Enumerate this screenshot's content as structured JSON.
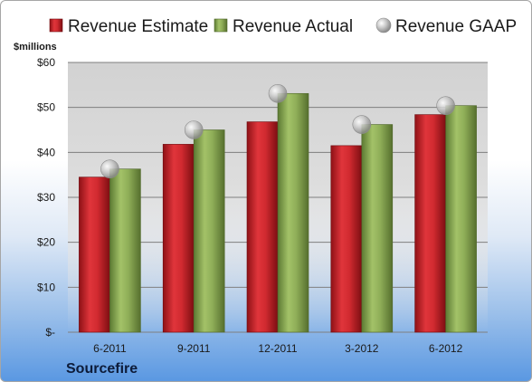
{
  "chart_data": {
    "type": "bar",
    "unit_label": "$millions",
    "company": "Sourcefire",
    "categories": [
      "6-2011",
      "9-2011",
      "12-2011",
      "3-2012",
      "6-2012"
    ],
    "series": [
      {
        "name": "Revenue Estimate",
        "kind": "bar",
        "color": "#d12a30",
        "values": [
          34.5,
          41.8,
          46.8,
          41.5,
          48.4
        ]
      },
      {
        "name": "Revenue Actual",
        "kind": "bar",
        "color": "#8fae58",
        "values": [
          36.3,
          45.0,
          53.1,
          46.2,
          50.4
        ]
      },
      {
        "name": "Revenue GAAP",
        "kind": "point",
        "color": "#b8b8b8",
        "values": [
          36.3,
          45.0,
          53.1,
          46.2,
          50.4
        ]
      }
    ],
    "ylim": [
      0,
      60
    ],
    "yticks": [
      0,
      10,
      20,
      30,
      40,
      50,
      60
    ],
    "ytick_labels": [
      "$-",
      "$10",
      "$20",
      "$30",
      "$40",
      "$50",
      "$60"
    ],
    "grid": true,
    "legend_position": "top"
  }
}
